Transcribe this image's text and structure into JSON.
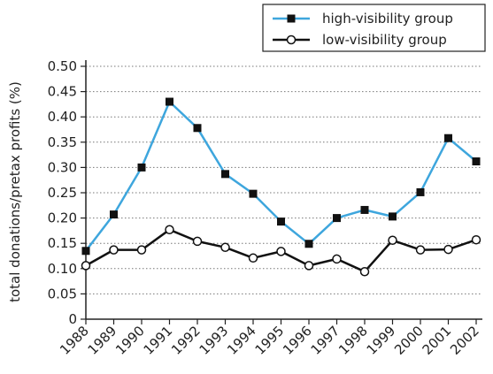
{
  "chart_data": {
    "type": "line",
    "title": "",
    "xlabel": "",
    "ylabel": "total donations/pretax profits (%)",
    "ylim": [
      0,
      0.5
    ],
    "yticks": [
      "0",
      "0.05",
      "0.10",
      "0.15",
      "0.20",
      "0.25",
      "0.30",
      "0.35",
      "0.40",
      "0.45",
      "0.50"
    ],
    "grid": "horizontal dotted",
    "legend_position": "top-right",
    "x": [
      "1988",
      "1989",
      "1990",
      "1991",
      "1992",
      "1993",
      "1994",
      "1995",
      "1996",
      "1997",
      "1998",
      "1999",
      "2000",
      "2001",
      "2002"
    ],
    "series": [
      {
        "name": "high-visibility group",
        "color": "#3ea6dd",
        "marker": "filled-square",
        "values": [
          0.135,
          0.207,
          0.3,
          0.43,
          0.378,
          0.287,
          0.248,
          0.193,
          0.149,
          0.2,
          0.216,
          0.203,
          0.251,
          0.358,
          0.312
        ]
      },
      {
        "name": "low-visibility group",
        "color": "#111111",
        "marker": "hollow-circle",
        "values": [
          0.106,
          0.137,
          0.137,
          0.177,
          0.154,
          0.142,
          0.121,
          0.134,
          0.106,
          0.119,
          0.094,
          0.156,
          0.137,
          0.138,
          0.157
        ]
      }
    ]
  }
}
